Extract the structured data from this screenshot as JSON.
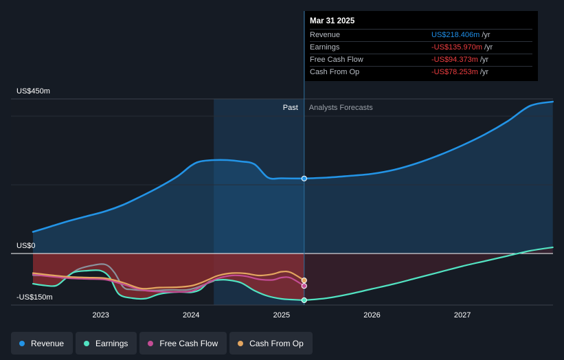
{
  "chart_data": {
    "type": "line",
    "title": "",
    "xlabel": "",
    "ylabel": "",
    "y_unit": "US$m",
    "ylim": [
      -150,
      450
    ],
    "y_ticks": [
      {
        "value": 450,
        "label": "US$450m"
      },
      {
        "value": 0,
        "label": "US$0"
      },
      {
        "value": -150,
        "label": "-US$150m"
      }
    ],
    "x_range": [
      2022.25,
      2028.0
    ],
    "x_ticks": [
      {
        "value": 2023,
        "label": "2023"
      },
      {
        "value": 2024,
        "label": "2024"
      },
      {
        "value": 2025,
        "label": "2025"
      },
      {
        "value": 2026,
        "label": "2026"
      },
      {
        "value": 2027,
        "label": "2027"
      }
    ],
    "past_start": 2024.25,
    "forecast_start": 2025.25,
    "past_label": "Past",
    "forecast_label": "Analysts Forecasts",
    "series": [
      {
        "name": "Revenue",
        "color": "#2394e6",
        "fill": true,
        "x": [
          2022.25,
          2022.45,
          2022.65,
          2022.85,
          2023.05,
          2023.25,
          2023.45,
          2023.65,
          2023.85,
          2024.0,
          2024.1,
          2024.25,
          2024.4,
          2024.55,
          2024.7,
          2024.85,
          2025.0,
          2025.25
        ],
        "values": [
          63,
          79,
          95,
          109,
          123,
          142,
          167,
          194,
          225,
          256,
          268,
          272,
          272,
          268,
          260,
          221,
          219,
          218.4
        ]
      },
      {
        "name": "Revenue forecast",
        "color": "#2394e6",
        "fill": true,
        "forecast": true,
        "x": [
          2025.25,
          2025.5,
          2025.75,
          2026.0,
          2026.25,
          2026.5,
          2026.75,
          2027.0,
          2027.25,
          2027.5,
          2027.75,
          2028.0
        ],
        "values": [
          218.4,
          221,
          226,
          232,
          244,
          263,
          287,
          315,
          347,
          385,
          430,
          442
        ]
      },
      {
        "name": "Earnings",
        "color": "#52e3c2",
        "x": [
          2022.25,
          2022.35,
          2022.5,
          2022.6,
          2022.7,
          2022.85,
          2023.0,
          2023.1,
          2023.2,
          2023.35,
          2023.5,
          2023.65,
          2023.85,
          2024.0,
          2024.1,
          2024.2,
          2024.3,
          2024.4,
          2024.55,
          2024.7,
          2024.85,
          2025.0,
          2025.1,
          2025.25
        ],
        "values": [
          -88,
          -92,
          -94,
          -75,
          -55,
          -50,
          -50,
          -70,
          -118,
          -130,
          -131,
          -118,
          -112,
          -113,
          -105,
          -82,
          -77,
          -77,
          -85,
          -108,
          -124,
          -132,
          -134,
          -136.0
        ]
      },
      {
        "name": "Earnings forecast",
        "color": "#52e3c2",
        "forecast": true,
        "x": [
          2025.25,
          2025.5,
          2025.75,
          2026.0,
          2026.25,
          2026.5,
          2026.75,
          2027.0,
          2027.25,
          2027.5,
          2027.75,
          2028.0
        ],
        "values": [
          -136.0,
          -130,
          -118,
          -103,
          -88,
          -71,
          -54,
          -37,
          -22,
          -7,
          8,
          18
        ]
      },
      {
        "name": "Cash From Op",
        "color": "#e3a660",
        "x": [
          2022.25,
          2022.45,
          2022.65,
          2022.85,
          2023.05,
          2023.25,
          2023.45,
          2023.65,
          2023.85,
          2024.0,
          2024.1,
          2024.2,
          2024.3,
          2024.45,
          2024.6,
          2024.75,
          2024.9,
          2025.0,
          2025.1,
          2025.25
        ],
        "values": [
          -57,
          -63,
          -68,
          -70,
          -72,
          -85,
          -102,
          -99,
          -98,
          -94,
          -86,
          -75,
          -64,
          -57,
          -58,
          -64,
          -60,
          -53,
          -55,
          -78.3
        ]
      },
      {
        "name": "Free Cash Flow",
        "color": "#c44d95",
        "x": [
          2022.25,
          2022.45,
          2022.65,
          2022.85,
          2023.05,
          2023.25,
          2023.45,
          2023.65,
          2023.85,
          2024.0,
          2024.1,
          2024.2,
          2024.3,
          2024.45,
          2024.6,
          2024.75,
          2024.9,
          2025.0,
          2025.1,
          2025.25
        ],
        "values": [
          -61,
          -67,
          -72,
          -74,
          -76,
          -90,
          -106,
          -111,
          -112,
          -110,
          -98,
          -83,
          -72,
          -64,
          -66,
          -75,
          -77,
          -70,
          -71,
          -94.4
        ]
      },
      {
        "name": "Earnings (smoothed)",
        "color": "#8a929c",
        "x": [
          2022.25,
          2022.5,
          2022.6,
          2022.75,
          2022.9,
          2023.05,
          2023.15,
          2023.25,
          2023.35,
          2023.55,
          2023.75,
          2023.95,
          2024.05,
          2024.15,
          2024.25
        ],
        "values": [
          -63,
          -66,
          -70,
          -46,
          -35,
          -32,
          -55,
          -98,
          -105,
          -108,
          -106,
          -106,
          -100,
          -90,
          -80
        ]
      }
    ],
    "markers": [
      {
        "series": "Revenue",
        "x": 2025.25,
        "value": 218.4,
        "color": "#2394e6"
      },
      {
        "series": "Cash From Op",
        "x": 2025.25,
        "value": -78.3,
        "color": "#e3a660"
      },
      {
        "series": "Free Cash Flow",
        "x": 2025.25,
        "value": -94.4,
        "color": "#c44d95"
      },
      {
        "series": "Earnings",
        "x": 2025.25,
        "value": -136.0,
        "color": "#52e3c2"
      }
    ]
  },
  "tooltip": {
    "date": "Mar 31 2025",
    "rows": [
      {
        "label": "Revenue",
        "value": "US$218.406m",
        "unit": "/yr"
      },
      {
        "label": "Earnings",
        "value": "-US$135.970m",
        "unit": "/yr"
      },
      {
        "label": "Free Cash Flow",
        "value": "-US$94.373m",
        "unit": "/yr"
      },
      {
        "label": "Cash From Op",
        "value": "-US$78.253m",
        "unit": "/yr"
      }
    ]
  },
  "legend": [
    {
      "label": "Revenue",
      "color": "#2394e6"
    },
    {
      "label": "Earnings",
      "color": "#52e3c2"
    },
    {
      "label": "Free Cash Flow",
      "color": "#c44d95"
    },
    {
      "label": "Cash From Op",
      "color": "#e3a660"
    }
  ]
}
